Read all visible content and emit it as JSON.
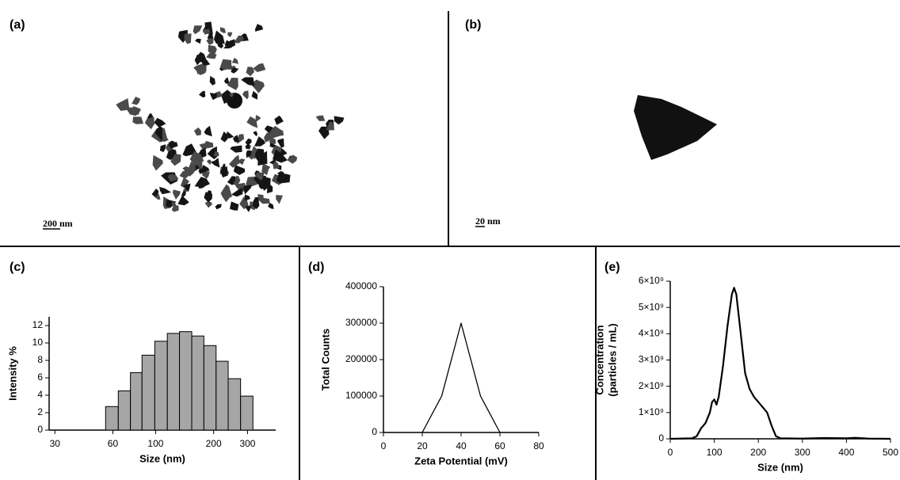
{
  "panels": [
    {
      "label": "(a)",
      "scale_bar": "200 nm"
    },
    {
      "label": "(b)",
      "scale_bar": "20 nm"
    }
  ],
  "chart_data": [
    {
      "type": "histogram",
      "panel_label": "(c)",
      "xlabel": "Size (nm)",
      "ylabel": "Intensity %",
      "bins": [
        55,
        64,
        74,
        85,
        99,
        115,
        133,
        154,
        178,
        206,
        238,
        276,
        320
      ],
      "values": [
        2.7,
        4.5,
        6.6,
        8.6,
        10.2,
        11.1,
        11.3,
        10.8,
        9.7,
        7.9,
        5.9,
        3.9
      ],
      "color": "#a6a6a6",
      "xscale": "log",
      "xlim": [
        28,
        420
      ],
      "xticks": [
        30,
        60,
        100,
        200,
        300
      ],
      "ylim": [
        0,
        13
      ],
      "yticks": [
        0,
        2,
        4,
        6,
        8,
        10,
        12
      ]
    },
    {
      "type": "line",
      "panel_label": "(d)",
      "xlabel": "Zeta Potential (mV)",
      "ylabel": [
        "Total Counts"
      ],
      "x": [
        20,
        30,
        40,
        50,
        60
      ],
      "values": [
        0,
        100000,
        300000,
        100000,
        0
      ],
      "color": "#000000",
      "xlim": [
        0,
        80
      ],
      "xticks": [
        0,
        20,
        40,
        60,
        80
      ],
      "ylim": [
        0,
        400000
      ],
      "yticks": [
        0,
        100000,
        200000,
        300000,
        400000
      ]
    },
    {
      "type": "line",
      "panel_label": "(e)",
      "xlabel": "Size (nm)",
      "ylabel": [
        "Concentration",
        "(particles / mL)"
      ],
      "x": [
        0,
        50,
        60,
        70,
        80,
        90,
        95,
        100,
        105,
        110,
        120,
        130,
        140,
        145,
        150,
        160,
        170,
        180,
        190,
        200,
        210,
        220,
        230,
        240,
        250,
        300,
        350,
        400,
        420,
        450,
        500
      ],
      "values": [
        0,
        20000000,
        100000000,
        400000000,
        600000000,
        1000000000,
        1400000000,
        1500000000,
        1300000000,
        1600000000,
        2800000000,
        4300000000,
        5500000000,
        5750000000,
        5500000000,
        4000000000,
        2500000000,
        1900000000,
        1600000000,
        1400000000,
        1200000000,
        1000000000,
        500000000,
        100000000,
        20000000,
        10000000,
        30000000,
        20000000,
        40000000,
        10000000,
        0
      ],
      "color": "#000000",
      "xlim": [
        0,
        500
      ],
      "xticks": [
        0,
        100,
        200,
        300,
        400,
        500
      ],
      "ylim": [
        0,
        6000000000
      ],
      "yticks": [
        0,
        {
          "value": 1000000000,
          "label": "1×10⁹"
        },
        {
          "value": 2000000000,
          "label": "2×10⁹"
        },
        {
          "value": 3000000000,
          "label": "3×10⁹"
        },
        {
          "value": 4000000000,
          "label": "4×10⁹"
        },
        {
          "value": 5000000000,
          "label": "5×10⁹"
        },
        {
          "value": 6000000000,
          "label": "6×10⁹"
        }
      ]
    }
  ]
}
